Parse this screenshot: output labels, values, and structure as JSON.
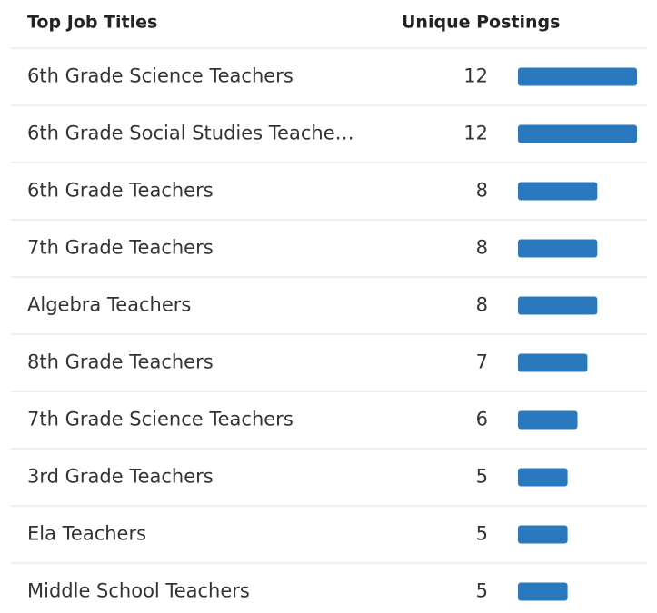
{
  "chart_data": {
    "type": "bar",
    "category_header": "Top Job Titles",
    "value_header": "Unique Postings",
    "categories": [
      "6th Grade Science Teachers",
      "6th Grade Social Studies Teache…",
      "6th Grade Teachers",
      "7th Grade Teachers",
      "Algebra Teachers",
      "8th Grade Teachers",
      "7th Grade Science Teachers",
      "3rd Grade Teachers",
      "Ela Teachers",
      "Middle School Teachers"
    ],
    "values": [
      12,
      12,
      8,
      8,
      8,
      7,
      6,
      5,
      5,
      5
    ],
    "color": "#2a78bd"
  }
}
